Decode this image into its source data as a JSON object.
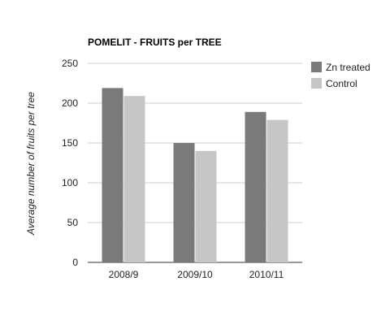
{
  "chart_data": {
    "type": "bar",
    "title": "POMELIT - FRUITS per TREE",
    "xlabel": "",
    "ylabel": "Average number of fruits per tree",
    "categories": [
      "2008/9",
      "2009/10",
      "2010/11"
    ],
    "series": [
      {
        "name": "Zn treated",
        "values": [
          219,
          150,
          189
        ],
        "color": "#7a7a7a"
      },
      {
        "name": "Control",
        "values": [
          209,
          140,
          179
        ],
        "color": "#c6c6c6"
      }
    ],
    "ylim": [
      0,
      250
    ],
    "yticks": [
      0,
      50,
      100,
      150,
      200,
      250
    ],
    "grid": true,
    "legend": "right"
  }
}
